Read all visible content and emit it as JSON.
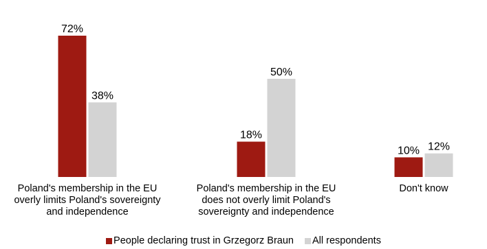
{
  "chart_data": {
    "type": "bar",
    "title": "",
    "categories": [
      "Poland's membership in the EU\noverly limits Poland's sovereignty\nand independence",
      "Poland's membership in the EU\ndoes not overly limit Poland's\nsovereignty and independence",
      "Don't know"
    ],
    "series": [
      {
        "name": "People declaring trust in Grzegorz Braun",
        "values": [
          72,
          18,
          10
        ],
        "labels": [
          "72%",
          "18%",
          "10%"
        ],
        "color": "#9e1a12"
      },
      {
        "name": "All respondents",
        "values": [
          38,
          50,
          12
        ],
        "labels": [
          "38%",
          "50%",
          "12%"
        ],
        "color": "#d3d3d3"
      }
    ],
    "ylim": [
      0,
      72
    ],
    "value_unit": "%",
    "grid": false,
    "legend": "bottom-center"
  }
}
